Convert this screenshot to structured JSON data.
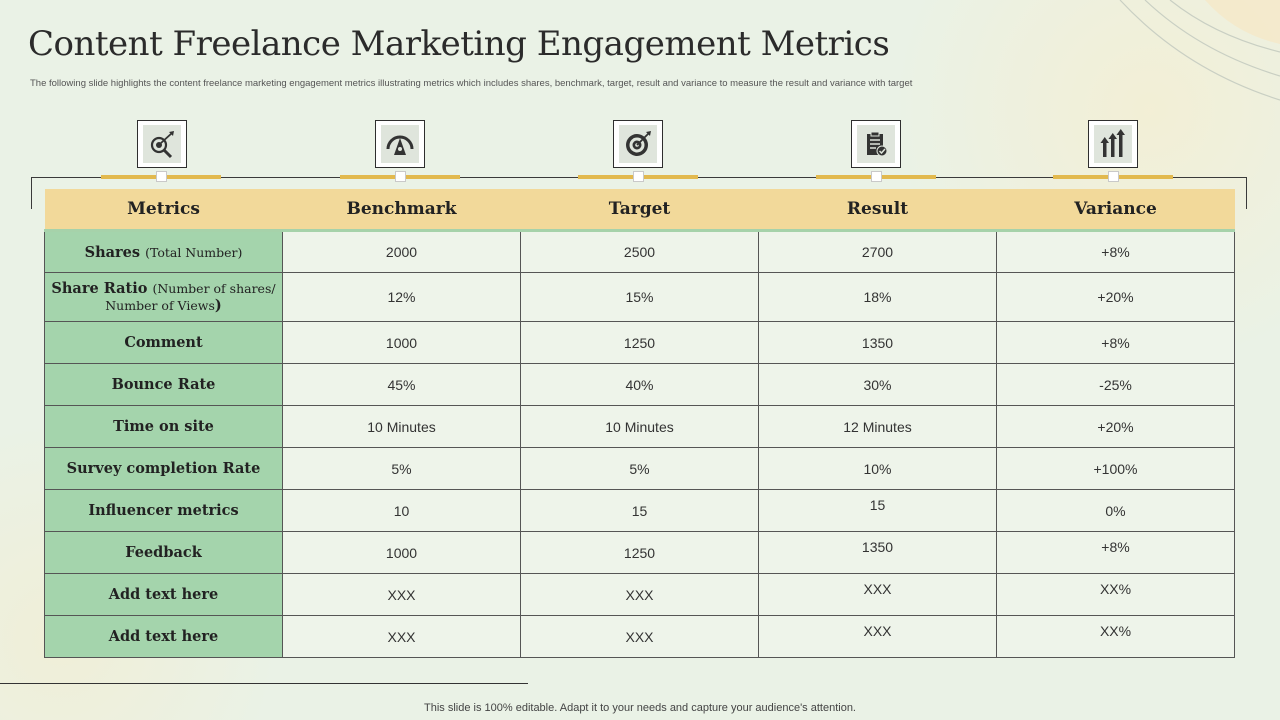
{
  "header": {
    "title": "Content Freelance Marketing Engagement Metrics",
    "subtitle": "The following slide highlights the content freelance marketing engagement metrics illustrating metrics which includes shares, benchmark, target, result and variance to measure the result and variance with target"
  },
  "icons": [
    "magnifier-target-icon",
    "gauge-icon",
    "dartboard-icon",
    "clipboard-check-icon",
    "rising-arrows-icon"
  ],
  "colors": {
    "header_fill": "#f2d99a",
    "metric_fill": "#a4d4ac",
    "accent_gold": "#e2b94e"
  },
  "table": {
    "headers": [
      "Metrics",
      "Benchmark",
      "Target",
      "Result",
      "Variance"
    ],
    "rows": [
      {
        "metric": "Shares",
        "metric_note": "(Total Number)",
        "benchmark": "2000",
        "target": "2500",
        "result": "2700",
        "variance": "+8%"
      },
      {
        "metric": "Share Ratio",
        "metric_note": "Number of shares/ Number of Views",
        "benchmark": "12%",
        "target": "15%",
        "result": "18%",
        "variance": "+20%"
      },
      {
        "metric": "Comment",
        "benchmark": "1000",
        "target": "1250",
        "result": "1350",
        "variance": "+8%"
      },
      {
        "metric": "Bounce Rate",
        "benchmark": "45%",
        "target": "40%",
        "result": "30%",
        "variance": "-25%"
      },
      {
        "metric": "Time on site",
        "benchmark": "10 Minutes",
        "target": "10 Minutes",
        "result": "12 Minutes",
        "variance": "+20%"
      },
      {
        "metric": "Survey completion Rate",
        "benchmark": "5%",
        "target": "5%",
        "result": "10%",
        "variance": "+100%"
      },
      {
        "metric": "Influencer metrics",
        "benchmark": "10",
        "target": "15",
        "result": "15",
        "variance": "0%"
      },
      {
        "metric": "Feedback",
        "benchmark": "1000",
        "target": "1250",
        "result": "1350",
        "variance": "+8%"
      },
      {
        "metric": "Add text here",
        "benchmark": "XXX",
        "target": "XXX",
        "result": "XXX",
        "variance": "XX%"
      },
      {
        "metric": "Add text here",
        "benchmark": "XXX",
        "target": "XXX",
        "result": "XXX",
        "variance": "XX%"
      }
    ]
  },
  "footer": {
    "text": "This slide is 100% editable. Adapt it to your needs and capture your audience's attention."
  }
}
